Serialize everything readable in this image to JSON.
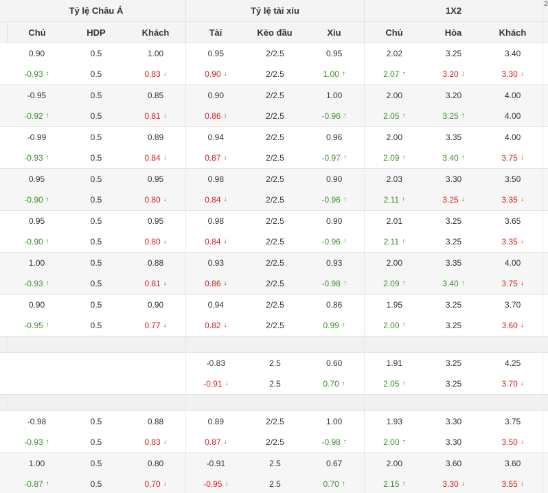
{
  "header": {
    "groups": [
      "Tỷ lệ Châu Á",
      "Tỷ lệ tài xỉu",
      "1X2"
    ],
    "columns": [
      "Chủ",
      "HDP",
      "Khách",
      "Tài",
      "Kèo đầu",
      "Xỉu",
      "Chủ",
      "Hòa",
      "Khách"
    ],
    "edge_char": "2"
  },
  "colors": {
    "up": "#3a8e2a",
    "down": "#d62020",
    "arrow_up_icon": "arrow-up-icon",
    "arrow_down_icon": "arrow-down-icon"
  },
  "blocks": [
    {
      "type": "rows",
      "rows": [
        [
          [
            "0.90",
            ""
          ],
          [
            "0.5",
            ""
          ],
          [
            "1.00",
            ""
          ],
          [
            "0.95",
            ""
          ],
          [
            "2/2.5",
            ""
          ],
          [
            "0.95",
            ""
          ],
          [
            "2.02",
            ""
          ],
          [
            "3.25",
            ""
          ],
          [
            "3.40",
            ""
          ]
        ],
        [
          [
            "-0.93",
            "up"
          ],
          [
            "0.5",
            ""
          ],
          [
            "0.83",
            "down"
          ],
          [
            "0.90",
            "down"
          ],
          [
            "2/2.5",
            ""
          ],
          [
            "1.00",
            "up"
          ],
          [
            "2.07",
            "up"
          ],
          [
            "3.20",
            "down"
          ],
          [
            "3.30",
            "down"
          ]
        ]
      ]
    },
    {
      "type": "rows",
      "rows": [
        [
          [
            "-0.95",
            ""
          ],
          [
            "0.5",
            ""
          ],
          [
            "0.85",
            ""
          ],
          [
            "0.90",
            ""
          ],
          [
            "2/2.5",
            ""
          ],
          [
            "1.00",
            ""
          ],
          [
            "2.00",
            ""
          ],
          [
            "3.20",
            ""
          ],
          [
            "4.00",
            ""
          ]
        ],
        [
          [
            "-0.92",
            "up"
          ],
          [
            "0.5",
            ""
          ],
          [
            "0.81",
            "down"
          ],
          [
            "0.86",
            "down"
          ],
          [
            "2/2.5",
            ""
          ],
          [
            "-0.96",
            "up"
          ],
          [
            "2.05",
            "up"
          ],
          [
            "3.25",
            "up"
          ],
          [
            "4.00",
            ""
          ]
        ]
      ]
    },
    {
      "type": "rows",
      "rows": [
        [
          [
            "-0.99",
            ""
          ],
          [
            "0.5",
            ""
          ],
          [
            "0.89",
            ""
          ],
          [
            "0.94",
            ""
          ],
          [
            "2/2.5",
            ""
          ],
          [
            "0.96",
            ""
          ],
          [
            "2.00",
            ""
          ],
          [
            "3.35",
            ""
          ],
          [
            "4.00",
            ""
          ]
        ],
        [
          [
            "-0.93",
            "up"
          ],
          [
            "0.5",
            ""
          ],
          [
            "0.84",
            "down"
          ],
          [
            "0.87",
            "down"
          ],
          [
            "2/2.5",
            ""
          ],
          [
            "-0.97",
            "up"
          ],
          [
            "2.09",
            "up"
          ],
          [
            "3.40",
            "up"
          ],
          [
            "3.75",
            "down"
          ]
        ]
      ]
    },
    {
      "type": "rows",
      "rows": [
        [
          [
            "0.95",
            ""
          ],
          [
            "0.5",
            ""
          ],
          [
            "0.95",
            ""
          ],
          [
            "0.98",
            ""
          ],
          [
            "2/2.5",
            ""
          ],
          [
            "0.90",
            ""
          ],
          [
            "2.03",
            ""
          ],
          [
            "3.30",
            ""
          ],
          [
            "3.50",
            ""
          ]
        ],
        [
          [
            "-0.90",
            "up"
          ],
          [
            "0.5",
            ""
          ],
          [
            "0.80",
            "down"
          ],
          [
            "0.84",
            "down"
          ],
          [
            "2/2.5",
            ""
          ],
          [
            "-0.96",
            "up"
          ],
          [
            "2.11",
            "up"
          ],
          [
            "3.25",
            "down"
          ],
          [
            "3.35",
            "down"
          ]
        ]
      ]
    },
    {
      "type": "rows",
      "rows": [
        [
          [
            "0.95",
            ""
          ],
          [
            "0.5",
            ""
          ],
          [
            "0.95",
            ""
          ],
          [
            "0.98",
            ""
          ],
          [
            "2/2.5",
            ""
          ],
          [
            "0.90",
            ""
          ],
          [
            "2.01",
            ""
          ],
          [
            "3.25",
            ""
          ],
          [
            "3.65",
            ""
          ]
        ],
        [
          [
            "-0.90",
            "up"
          ],
          [
            "0.5",
            ""
          ],
          [
            "0.80",
            "down"
          ],
          [
            "0.84",
            "down"
          ],
          [
            "2/2.5",
            ""
          ],
          [
            "-0.96",
            "up"
          ],
          [
            "2.11",
            "up"
          ],
          [
            "3.25",
            ""
          ],
          [
            "3.35",
            "down"
          ]
        ]
      ]
    },
    {
      "type": "rows",
      "rows": [
        [
          [
            "1.00",
            ""
          ],
          [
            "0.5",
            ""
          ],
          [
            "0.88",
            ""
          ],
          [
            "0.93",
            ""
          ],
          [
            "2/2.5",
            ""
          ],
          [
            "0.93",
            ""
          ],
          [
            "2.00",
            ""
          ],
          [
            "3.35",
            ""
          ],
          [
            "4.00",
            ""
          ]
        ],
        [
          [
            "-0.93",
            "up"
          ],
          [
            "0.5",
            ""
          ],
          [
            "0.81",
            "down"
          ],
          [
            "0.86",
            "down"
          ],
          [
            "2/2.5",
            ""
          ],
          [
            "-0.98",
            "up"
          ],
          [
            "2.09",
            "up"
          ],
          [
            "3.40",
            "up"
          ],
          [
            "3.75",
            "down"
          ]
        ]
      ]
    },
    {
      "type": "rows",
      "rows": [
        [
          [
            "0.90",
            ""
          ],
          [
            "0.5",
            ""
          ],
          [
            "0.90",
            ""
          ],
          [
            "0.94",
            ""
          ],
          [
            "2/2.5",
            ""
          ],
          [
            "0.86",
            ""
          ],
          [
            "1.95",
            ""
          ],
          [
            "3.25",
            ""
          ],
          [
            "3.70",
            ""
          ]
        ],
        [
          [
            "-0.95",
            "up"
          ],
          [
            "0.5",
            ""
          ],
          [
            "0.77",
            "down"
          ],
          [
            "0.82",
            "down"
          ],
          [
            "2/2.5",
            ""
          ],
          [
            "0.99",
            "up"
          ],
          [
            "2.00",
            "up"
          ],
          [
            "3.25",
            ""
          ],
          [
            "3.60",
            "down"
          ]
        ]
      ]
    },
    {
      "type": "spacer"
    },
    {
      "type": "rows",
      "rows": [
        [
          [
            "",
            ""
          ],
          [
            "",
            ""
          ],
          [
            "",
            ""
          ],
          [
            "-0.83",
            ""
          ],
          [
            "2.5",
            ""
          ],
          [
            "0.60",
            ""
          ],
          [
            "1.91",
            ""
          ],
          [
            "3.25",
            ""
          ],
          [
            "4.25",
            ""
          ]
        ],
        [
          [
            "",
            ""
          ],
          [
            "",
            ""
          ],
          [
            "",
            ""
          ],
          [
            "-0.91",
            "down"
          ],
          [
            "2.5",
            ""
          ],
          [
            "0.70",
            "up"
          ],
          [
            "2.05",
            "up"
          ],
          [
            "3.25",
            ""
          ],
          [
            "3.70",
            "down"
          ]
        ]
      ]
    },
    {
      "type": "spacer"
    },
    {
      "type": "rows",
      "rows": [
        [
          [
            "-0.98",
            ""
          ],
          [
            "0.5",
            ""
          ],
          [
            "0.88",
            ""
          ],
          [
            "0.89",
            ""
          ],
          [
            "2/2.5",
            ""
          ],
          [
            "1.00",
            ""
          ],
          [
            "1.93",
            ""
          ],
          [
            "3.30",
            ""
          ],
          [
            "3.75",
            ""
          ]
        ],
        [
          [
            "-0.93",
            "up"
          ],
          [
            "0.5",
            ""
          ],
          [
            "0.83",
            "down"
          ],
          [
            "0.87",
            "down"
          ],
          [
            "2/2.5",
            ""
          ],
          [
            "-0.98",
            "up"
          ],
          [
            "2.00",
            "up"
          ],
          [
            "3.30",
            ""
          ],
          [
            "3.50",
            "down"
          ]
        ]
      ]
    },
    {
      "type": "rows",
      "rows": [
        [
          [
            "1.00",
            ""
          ],
          [
            "0.5",
            ""
          ],
          [
            "0.80",
            ""
          ],
          [
            "-0.91",
            ""
          ],
          [
            "2.5",
            ""
          ],
          [
            "0.67",
            ""
          ],
          [
            "2.00",
            ""
          ],
          [
            "3.60",
            ""
          ],
          [
            "3.60",
            ""
          ]
        ],
        [
          [
            "-0.87",
            "up"
          ],
          [
            "0.5",
            ""
          ],
          [
            "0.70",
            "down"
          ],
          [
            "-0.95",
            "down"
          ],
          [
            "2.5",
            ""
          ],
          [
            "0.70",
            "up"
          ],
          [
            "2.15",
            "up"
          ],
          [
            "3.30",
            "down"
          ],
          [
            "3.55",
            "down"
          ]
        ]
      ]
    }
  ]
}
